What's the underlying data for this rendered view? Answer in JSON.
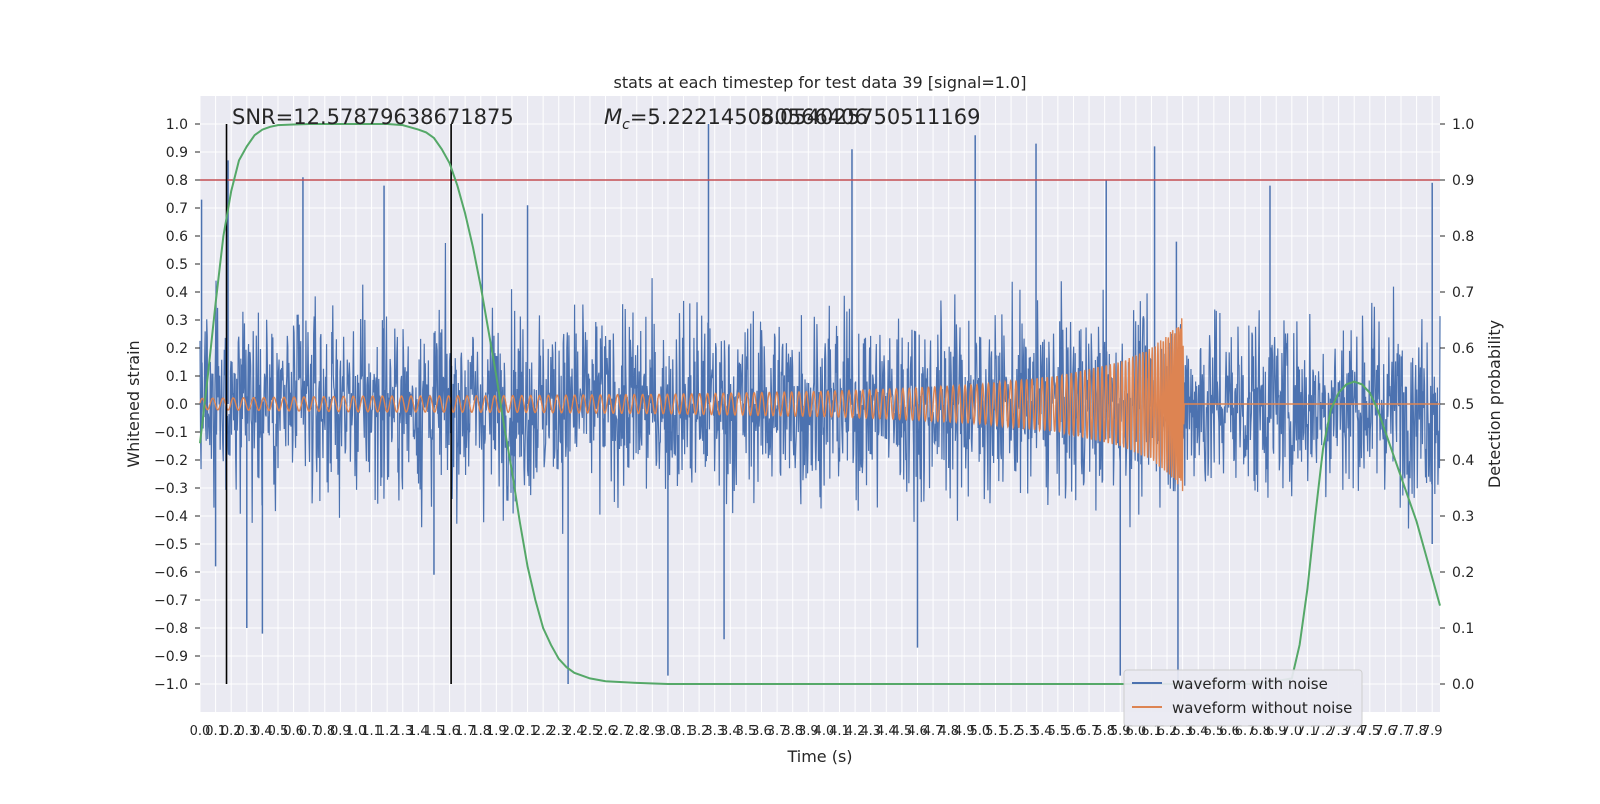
{
  "chart_data": {
    "type": "line",
    "title": "stats at each timestep for test data 39 [signal=1.0]",
    "xlabel": "Time (s)",
    "ylabel": "Whitened strain",
    "y2label": "Detection probability",
    "xlim": [
      0.0,
      7.95
    ],
    "ylim": [
      -1.1,
      1.1
    ],
    "y2lim": [
      -0.05,
      1.05
    ],
    "x_ticks": [
      "0.0",
      "0.1",
      "0.2",
      "0.3",
      "0.4",
      "0.5",
      "0.6",
      "0.7",
      "0.8",
      "0.9",
      "1.0",
      "1.1",
      "1.2",
      "1.3",
      "1.4",
      "1.5",
      "1.6",
      "1.7",
      "1.8",
      "1.9",
      "2.0",
      "2.1",
      "2.2",
      "2.3",
      "2.4",
      "2.5",
      "2.6",
      "2.7",
      "2.8",
      "2.9",
      "3.0",
      "3.1",
      "3.2",
      "3.3",
      "3.4",
      "3.5",
      "3.6",
      "3.7",
      "3.8",
      "3.9",
      "4.0",
      "4.1",
      "4.2",
      "4.3",
      "4.4",
      "4.5",
      "4.6",
      "4.7",
      "4.8",
      "4.9",
      "5.0",
      "5.1",
      "5.2",
      "5.3",
      "5.4",
      "5.5",
      "5.6",
      "5.7",
      "5.8",
      "5.9",
      "6.0",
      "6.1",
      "6.2",
      "6.3",
      "6.4",
      "6.5",
      "6.6",
      "6.7",
      "6.8",
      "6.9",
      "7.0",
      "7.1",
      "7.2",
      "7.3",
      "7.4",
      "7.5",
      "7.6",
      "7.7",
      "7.8",
      "7.9"
    ],
    "y_ticks": [
      "−1.0",
      "−0.9",
      "−0.8",
      "−0.7",
      "−0.6",
      "−0.5",
      "−0.4",
      "−0.3",
      "−0.2",
      "−0.1",
      "0.0",
      "0.1",
      "0.2",
      "0.3",
      "0.4",
      "0.5",
      "0.6",
      "0.7",
      "0.8",
      "0.9",
      "1.0"
    ],
    "y2_ticks": [
      "0.0",
      "0.1",
      "0.2",
      "0.3",
      "0.4",
      "0.5",
      "0.6",
      "0.7",
      "0.8",
      "0.9",
      "1.0"
    ],
    "annotations": {
      "snr": "SNR=12.57879638671875",
      "mc_prefix": "M",
      "mc_sub": "c",
      "mc_value": "=5.222145080566406",
      "overlap": "5.054025750511169"
    },
    "threshold_line": {
      "y": 0.8,
      "color": "#c44e52"
    },
    "vertical_lines": [
      {
        "x": 0.17,
        "color": "#000000"
      },
      {
        "x": 1.61,
        "color": "#000000"
      }
    ],
    "series": [
      {
        "name": "waveform with noise",
        "color": "#4c72b0",
        "description_values": {
          "typical_amplitude": 0.55,
          "peaks": [
            [
              0.01,
              0.73
            ],
            [
              0.18,
              0.87
            ],
            [
              0.66,
              0.81
            ],
            [
              1.18,
              0.78
            ],
            [
              1.81,
              0.68
            ],
            [
              2.1,
              0.71
            ],
            [
              3.26,
              1.0
            ],
            [
              4.18,
              0.91
            ],
            [
              4.97,
              0.96
            ],
            [
              5.36,
              0.93
            ],
            [
              5.81,
              0.8
            ],
            [
              6.12,
              0.92
            ],
            [
              6.26,
              0.58
            ],
            [
              6.86,
              0.78
            ],
            [
              7.9,
              0.79
            ]
          ],
          "troughs": [
            [
              0.1,
              -0.58
            ],
            [
              0.3,
              -0.8
            ],
            [
              0.4,
              -0.82
            ],
            [
              1.5,
              -0.61
            ],
            [
              2.36,
              -1.0
            ],
            [
              3.0,
              -0.97
            ],
            [
              3.36,
              -0.84
            ],
            [
              4.6,
              -0.87
            ],
            [
              5.9,
              -0.97
            ],
            [
              6.27,
              -1.0
            ],
            [
              7.9,
              -0.5
            ]
          ]
        }
      },
      {
        "name": "waveform without noise",
        "color": "#dd8452",
        "description_values": {
          "envelope": [
            [
              0.0,
              0.02
            ],
            [
              1.0,
              0.028
            ],
            [
              2.0,
              0.03
            ],
            [
              3.0,
              0.035
            ],
            [
              4.0,
              0.045
            ],
            [
              4.5,
              0.055
            ],
            [
              5.0,
              0.07
            ],
            [
              5.5,
              0.1
            ],
            [
              5.9,
              0.15
            ],
            [
              6.1,
              0.2
            ],
            [
              6.25,
              0.27
            ],
            [
              6.3,
              0.32
            ],
            [
              6.31,
              0.0
            ]
          ]
        }
      },
      {
        "name": "",
        "color": "#55a868",
        "axis": "right",
        "x": [
          0.0,
          0.05,
          0.1,
          0.15,
          0.2,
          0.25,
          0.3,
          0.35,
          0.4,
          0.45,
          0.5,
          0.6,
          0.7,
          0.8,
          1.0,
          1.2,
          1.3,
          1.4,
          1.45,
          1.5,
          1.55,
          1.6,
          1.65,
          1.7,
          1.75,
          1.8,
          1.85,
          1.9,
          1.95,
          2.0,
          2.05,
          2.1,
          2.15,
          2.2,
          2.25,
          2.3,
          2.35,
          2.4,
          2.5,
          2.6,
          2.8,
          3.0,
          4.0,
          5.0,
          6.0,
          6.5,
          6.8,
          7.0,
          7.05,
          7.1,
          7.15,
          7.2,
          7.25,
          7.3,
          7.35,
          7.4,
          7.45,
          7.5,
          7.55,
          7.6,
          7.65,
          7.7,
          7.75,
          7.8,
          7.85,
          7.9,
          7.95
        ],
        "values": [
          0.43,
          0.55,
          0.68,
          0.8,
          0.88,
          0.935,
          0.96,
          0.98,
          0.99,
          0.995,
          0.998,
          0.999,
          1.0,
          1.0,
          1.0,
          1.0,
          0.998,
          0.99,
          0.985,
          0.975,
          0.955,
          0.93,
          0.89,
          0.84,
          0.78,
          0.71,
          0.63,
          0.55,
          0.46,
          0.38,
          0.29,
          0.21,
          0.15,
          0.1,
          0.07,
          0.045,
          0.03,
          0.02,
          0.01,
          0.005,
          0.002,
          0.0,
          0.0,
          0.0,
          0.0,
          0.0,
          0.0,
          0.01,
          0.07,
          0.17,
          0.3,
          0.42,
          0.49,
          0.52,
          0.535,
          0.54,
          0.535,
          0.52,
          0.49,
          0.45,
          0.41,
          0.37,
          0.33,
          0.29,
          0.24,
          0.19,
          0.14
        ]
      }
    ],
    "grid": true,
    "legend_position": "lower-right"
  },
  "colors": {
    "axes_bg": "#eaeaf2",
    "grid": "#ffffff"
  }
}
